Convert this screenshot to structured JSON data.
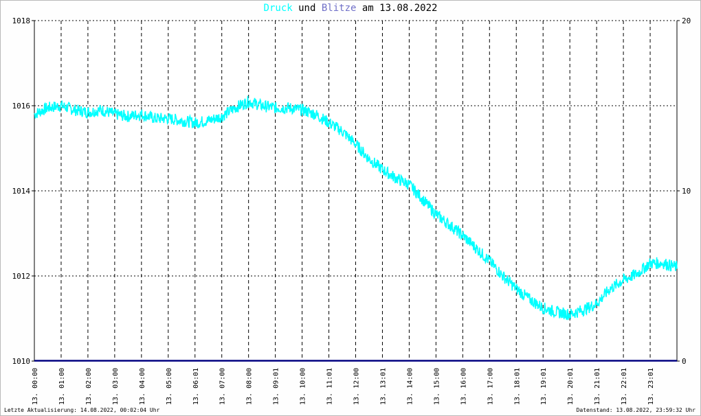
{
  "title": {
    "part1": "Druck",
    "part2": " und ",
    "part3": "Blitze",
    "part4": " am 13.08.2022",
    "color_druck": "#00ffff",
    "color_blitze": "#7070c8"
  },
  "footer": {
    "left": "Letzte Aktualisierung: 14.08.2022, 00:02:04 Uhr",
    "right": "Datenstand: 13.08.2022, 23:59:32 Uhr"
  },
  "chart_data": {
    "type": "line",
    "title": "Druck und Blitze am 13.08.2022",
    "x_tick_labels": [
      "13. 00:00",
      "13. 01:00",
      "13. 02:00",
      "13. 03:00",
      "13. 04:00",
      "13. 05:00",
      "13. 06:01",
      "13. 07:00",
      "13. 08:00",
      "13. 09:01",
      "13. 10:00",
      "13. 11:01",
      "13. 12:00",
      "13. 13:01",
      "13. 14:00",
      "13. 15:00",
      "13. 16:00",
      "13. 17:00",
      "13. 18:01",
      "13. 19:01",
      "13. 20:01",
      "13. 21:01",
      "13. 22:01",
      "13. 23:01"
    ],
    "x_hours": [
      0,
      1,
      2,
      3,
      4,
      5,
      6,
      7,
      8,
      9,
      10,
      11,
      12,
      13,
      14,
      15,
      16,
      17,
      18,
      19,
      20,
      21,
      22,
      23
    ],
    "xlim": [
      0,
      24
    ],
    "y_left": {
      "ylim": [
        1010,
        1018
      ],
      "ticks": [
        1010,
        1012,
        1014,
        1016,
        1018
      ]
    },
    "y_right": {
      "ylim": [
        0,
        20
      ],
      "ticks": [
        0,
        10,
        20
      ]
    },
    "grid": true,
    "series": [
      {
        "name": "Druck",
        "color": "#00ffff",
        "axis": "left",
        "x": [
          0,
          0.5,
          1,
          1.5,
          2,
          2.5,
          3,
          3.5,
          4,
          4.5,
          5,
          5.5,
          6,
          6.5,
          7,
          7.5,
          8,
          8.5,
          9,
          9.5,
          10,
          10.5,
          11,
          11.5,
          12,
          12.5,
          13,
          13.5,
          14,
          14.5,
          15,
          15.5,
          16,
          16.5,
          17,
          17.5,
          18,
          18.5,
          19,
          19.5,
          20,
          20.5,
          21,
          21.5,
          22,
          22.5,
          23,
          23.5,
          24
        ],
        "values": [
          1015.8,
          1015.95,
          1016.0,
          1015.9,
          1015.85,
          1015.9,
          1015.8,
          1015.75,
          1015.8,
          1015.7,
          1015.7,
          1015.65,
          1015.6,
          1015.65,
          1015.75,
          1015.95,
          1016.1,
          1016.0,
          1015.95,
          1015.95,
          1015.9,
          1015.8,
          1015.6,
          1015.4,
          1015.1,
          1014.75,
          1014.5,
          1014.3,
          1014.15,
          1013.8,
          1013.45,
          1013.2,
          1012.95,
          1012.65,
          1012.35,
          1012.0,
          1011.7,
          1011.45,
          1011.25,
          1011.15,
          1011.1,
          1011.2,
          1011.35,
          1011.7,
          1011.9,
          1012.05,
          1012.3,
          1012.3,
          1012.2
        ]
      },
      {
        "name": "Blitze",
        "color": "#000080",
        "axis": "right",
        "x": [
          0,
          24
        ],
        "values": [
          0,
          0
        ]
      }
    ]
  }
}
